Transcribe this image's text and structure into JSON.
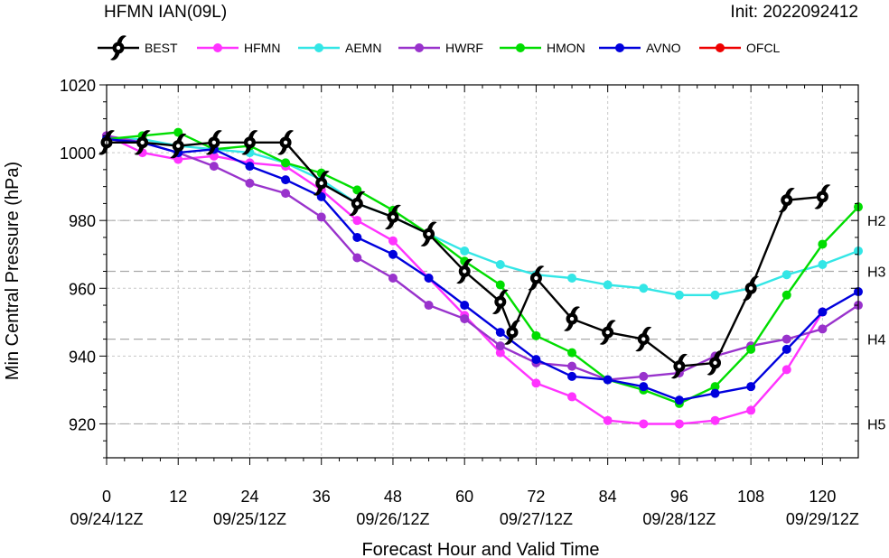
{
  "header": {
    "title": "HFMN IAN(09L)",
    "init": "Init: 2022092412"
  },
  "chart_data": {
    "type": "line",
    "xlabel": "Forecast Hour and Valid Time",
    "ylabel": "Min Central Pressure (hPa)",
    "xlim": [
      0,
      126
    ],
    "ylim": [
      910,
      1020
    ],
    "x_ticks": [
      0,
      12,
      24,
      36,
      48,
      60,
      72,
      84,
      96,
      108,
      120
    ],
    "x_tick_labels": [
      "0",
      "12",
      "24",
      "36",
      "48",
      "60",
      "72",
      "84",
      "96",
      "108",
      "120"
    ],
    "date_labels": [
      {
        "x": 0,
        "label": "09/24/12Z"
      },
      {
        "x": 24,
        "label": "09/25/12Z"
      },
      {
        "x": 48,
        "label": "09/26/12Z"
      },
      {
        "x": 72,
        "label": "09/27/12Z"
      },
      {
        "x": 96,
        "label": "09/28/12Z"
      },
      {
        "x": 120,
        "label": "09/29/12Z"
      }
    ],
    "y_ticks": [
      920,
      940,
      960,
      980,
      1000,
      1020
    ],
    "category_lines": [
      {
        "value": 980,
        "label": "H2"
      },
      {
        "value": 965,
        "label": "H3"
      },
      {
        "value": 945,
        "label": "H4"
      },
      {
        "value": 920,
        "label": "H5"
      }
    ],
    "grid": true,
    "legend_position": "top",
    "series": [
      {
        "name": "BEST",
        "color": "#000000",
        "marker": "hurricane-symbol",
        "x": [
          0,
          6,
          12,
          18,
          24,
          30,
          36,
          42,
          48,
          54,
          60,
          66,
          68,
          72,
          78,
          84,
          90,
          96,
          102,
          108,
          114,
          120
        ],
        "y": [
          1003,
          1003,
          1002,
          1003,
          1003,
          1003,
          991,
          985,
          981,
          976,
          965,
          956,
          947,
          963,
          951,
          947,
          945,
          937,
          938,
          960,
          986,
          987
        ]
      },
      {
        "name": "HFMN",
        "color": "#ff33ff",
        "marker": "circle",
        "x": [
          0,
          6,
          12,
          18,
          24,
          30,
          36,
          42,
          48,
          54,
          60,
          66,
          72,
          78,
          84,
          90,
          96,
          102,
          108,
          114,
          120
        ],
        "y": [
          1005,
          1000,
          998,
          999,
          997,
          996,
          989,
          980,
          974,
          963,
          952,
          941,
          932,
          928,
          921,
          920,
          920,
          921,
          924,
          936,
          953
        ]
      },
      {
        "name": "AEMN",
        "color": "#33e6e6",
        "marker": "circle",
        "x": [
          0,
          6,
          12,
          18,
          24,
          30,
          36,
          42,
          48,
          54,
          60,
          66,
          72,
          78,
          84,
          90,
          96,
          102,
          108,
          114,
          120,
          126
        ],
        "y": [
          1004,
          1004,
          1002,
          1001,
          1000,
          997,
          992,
          985,
          981,
          976,
          971,
          967,
          964,
          963,
          961,
          960,
          958,
          958,
          960,
          964,
          967,
          971
        ]
      },
      {
        "name": "HWRF",
        "color": "#9933cc",
        "marker": "circle",
        "x": [
          0,
          6,
          12,
          18,
          24,
          30,
          36,
          42,
          48,
          54,
          60,
          66,
          72,
          78,
          84,
          90,
          96,
          102,
          108,
          114,
          120,
          126
        ],
        "y": [
          1005,
          1003,
          1000,
          996,
          991,
          988,
          981,
          969,
          963,
          955,
          951,
          943,
          938,
          937,
          933,
          934,
          935,
          940,
          943,
          945,
          948,
          955
        ]
      },
      {
        "name": "HMON",
        "color": "#00dd00",
        "marker": "circle",
        "x": [
          0,
          6,
          12,
          18,
          24,
          30,
          36,
          42,
          48,
          54,
          60,
          66,
          72,
          78,
          84,
          90,
          96,
          102,
          108,
          114,
          120,
          126
        ],
        "y": [
          1004,
          1005,
          1006,
          1001,
          1002,
          997,
          994,
          989,
          983,
          976,
          968,
          961,
          946,
          941,
          933,
          930,
          926,
          931,
          942,
          958,
          973,
          984
        ]
      },
      {
        "name": "AVNO",
        "color": "#0000dd",
        "marker": "circle",
        "x": [
          0,
          6,
          12,
          18,
          24,
          30,
          36,
          42,
          48,
          54,
          60,
          66,
          72,
          78,
          84,
          90,
          96,
          102,
          108,
          114,
          120,
          126
        ],
        "y": [
          1004,
          1003,
          1000,
          1001,
          996,
          992,
          987,
          975,
          970,
          963,
          955,
          947,
          939,
          934,
          933,
          931,
          927,
          929,
          931,
          942,
          953,
          959
        ]
      },
      {
        "name": "OFCL",
        "color": "#ee0000",
        "marker": "circle",
        "x": [],
        "y": []
      }
    ]
  }
}
